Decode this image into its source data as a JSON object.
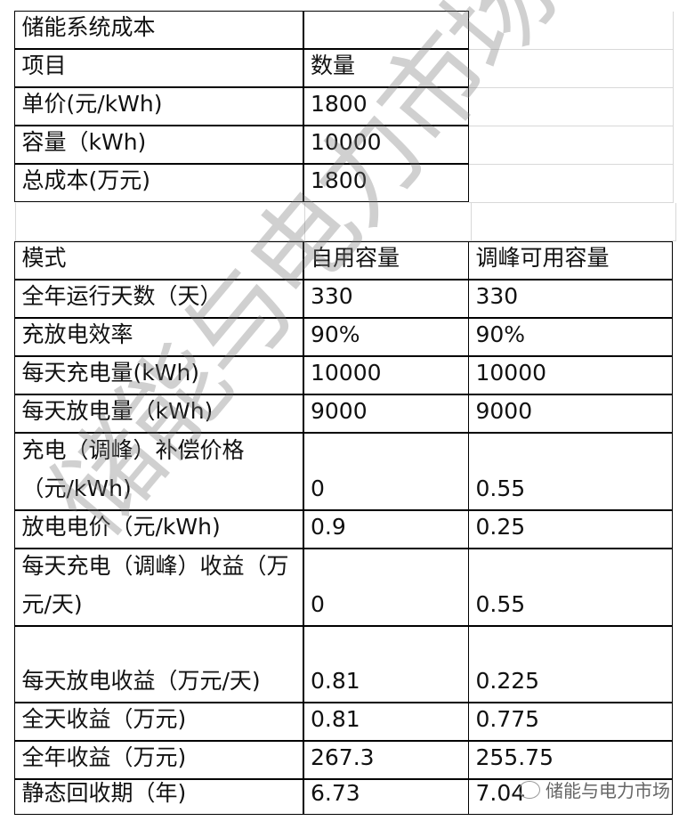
{
  "cost_table": {
    "title": "储能系统成本",
    "header": [
      "项目",
      "数量"
    ],
    "rows": [
      [
        "单价(元/kWh)",
        "1800"
      ],
      [
        "容量（kWh)",
        "10000"
      ],
      [
        "总成本(万元)",
        "1800"
      ]
    ]
  },
  "mode_table": {
    "header": [
      "模式",
      "自用容量",
      "调峰可用容量"
    ],
    "rows": [
      [
        "全年运行天数（天）",
        "330",
        "330"
      ],
      [
        "充放电效率",
        "90%",
        "90%"
      ],
      [
        "每天充电量(kWh)",
        "10000",
        "10000"
      ],
      [
        "每天放电量（kWh)",
        "9000",
        "9000"
      ],
      [
        "充电（调峰）补偿价格（元/kWh)",
        "0",
        "0.55"
      ],
      [
        "放电电价（元/kWh)",
        "0.9",
        "0.25"
      ],
      [
        "每天充电（调峰）收益（万元/天)",
        "0",
        "0.55"
      ],
      [
        "每天放电收益（万元/天)",
        "0.81",
        "0.225"
      ],
      [
        "全天收益（万元)",
        "0.81",
        "0.775"
      ],
      [
        "全年收益（万元)",
        "267.3",
        "255.75"
      ],
      [
        "静态回收期（年)",
        "6.73",
        "7.04"
      ]
    ]
  },
  "watermark": {
    "text": "储能与电力市场",
    "icon": "wechat-icon"
  }
}
